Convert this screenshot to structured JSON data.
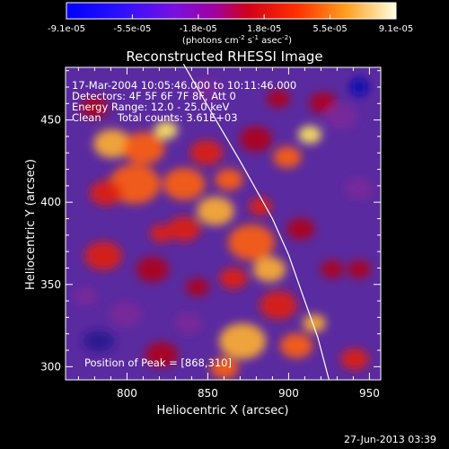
{
  "colorbar": {
    "tick_labels": [
      "-9.1e-05",
      "-5.5e-05",
      "-1.8e-05",
      "1.8e-05",
      "5.5e-05",
      "9.1e-05"
    ],
    "unit_prefix": "(photons cm",
    "unit_exp1": "-2",
    "unit_mid": " s",
    "unit_exp2": "-1",
    "unit_suffix": " asec",
    "unit_exp3": "-2",
    "unit_close": ")",
    "range": [
      -9.1e-05,
      9.1e-05
    ]
  },
  "title": "Reconstructed RHESSI Image",
  "info": {
    "time_range": "17-Mar-2004 10:05:46.000 to 10:11:46.000",
    "detectors": "Detectors: 4F 5F 6F 7F 8F, Att 0",
    "energy": "Energy Range: 12.0 - 25.0 keV",
    "clean": "Clean     Total counts: 3.61E+03"
  },
  "peak_text": "Position of Peak = [868,310]",
  "footer_date": "27-Jun-2013 03:39",
  "chart_data": {
    "type": "heatmap",
    "title": "Reconstructed RHESSI Image",
    "xlabel": "Heliocentric X (arcsec)",
    "ylabel": "Heliocentric Y (arcsec)",
    "xlim": [
      762,
      957
    ],
    "ylim": [
      292,
      482
    ],
    "xticks": [
      800,
      850,
      900,
      950
    ],
    "yticks": [
      300,
      350,
      400,
      450
    ],
    "limb_line": [
      [
        835,
        484
      ],
      [
        855,
        450
      ],
      [
        870,
        425
      ],
      [
        890,
        390
      ],
      [
        900,
        368
      ],
      [
        910,
        340
      ],
      [
        918,
        318
      ],
      [
        925,
        292
      ]
    ],
    "peak": [
      868,
      310
    ],
    "colorbar_range": [
      -9.1e-05,
      9.1e-05
    ]
  }
}
